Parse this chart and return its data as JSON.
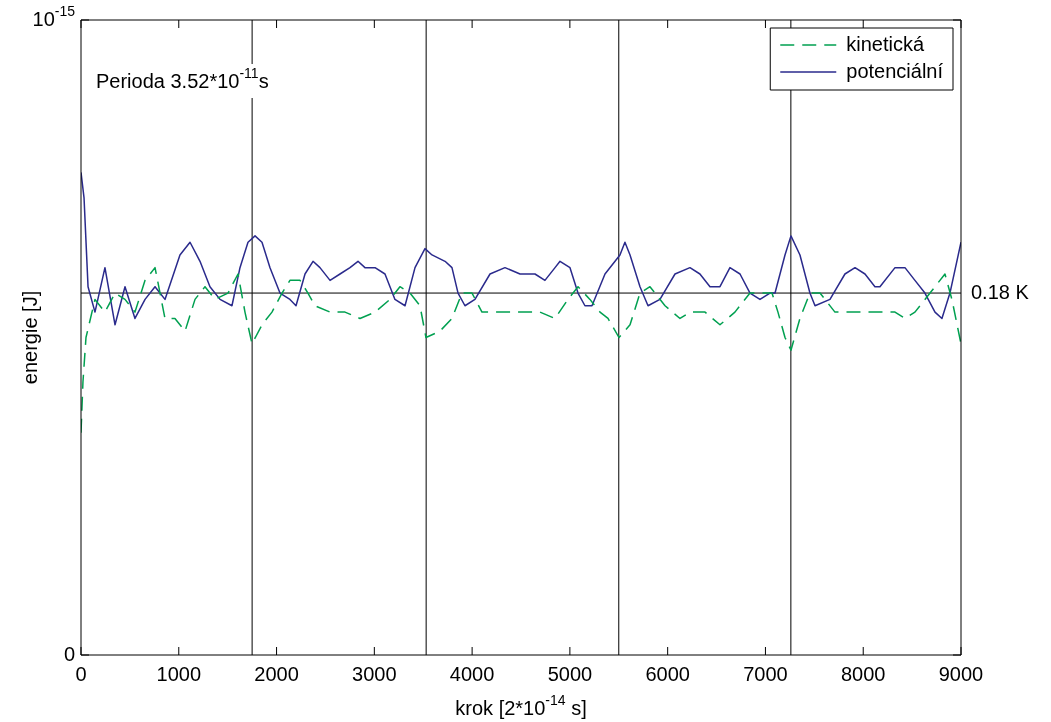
{
  "chart_data": {
    "type": "line",
    "xlabel": "krok [2*10$^{-14}$ s]",
    "ylabel": "energie [J]",
    "annotations": [
      "Perioda 3.52*10$^{-11}$s"
    ],
    "xlim": [
      0,
      9000
    ],
    "xticks": [
      0,
      1000,
      2000,
      3000,
      4000,
      5000,
      6000,
      7000,
      8000,
      9000
    ],
    "ylim": [
      0,
      1e-15
    ],
    "yticks": [
      {
        "value": 0,
        "label": "0"
      },
      {
        "value": 1e-15,
        "label": "10$^{-15}$"
      }
    ],
    "grid": false,
    "legend": "top right",
    "ref_lines": [
      {
        "axis": "y",
        "value": 5.7e-16,
        "label": "0.18 K",
        "color": "#000000"
      },
      {
        "axis": "x",
        "value": 1750,
        "color": "#000000"
      },
      {
        "axis": "x",
        "value": 3530,
        "color": "#000000"
      },
      {
        "axis": "x",
        "value": 5500,
        "color": "#000000"
      },
      {
        "axis": "x",
        "value": 7260,
        "color": "#000000"
      }
    ],
    "series": [
      {
        "name": "kinetická",
        "color": "#00a050",
        "line_style": "dashed",
        "x": [
          0,
          20,
          51,
          143,
          245,
          348,
          450,
          552,
          655,
          757,
          859,
          961,
          1064,
          1166,
          1268,
          1370,
          1503,
          1606,
          1677,
          1749,
          1851,
          1953,
          2056,
          2137,
          2240,
          2321,
          2393,
          2547,
          2700,
          2853,
          3007,
          3160,
          3262,
          3365,
          3467,
          3528,
          3671,
          3794,
          3896,
          3999,
          4101,
          4234,
          4387,
          4541,
          4694,
          4848,
          4980,
          5083,
          5205,
          5308,
          5390,
          5502,
          5615,
          5717,
          5819,
          5973,
          6126,
          6228,
          6382,
          6535,
          6688,
          6842,
          6995,
          7067,
          7128,
          7200,
          7261,
          7353,
          7455,
          7558,
          7711,
          7865,
          8018,
          8171,
          8325,
          8427,
          8529,
          8683,
          8836,
          8907,
          9000
        ],
        "values": [
          3.5e-16,
          4.3e-16,
          5e-16,
          5.6e-16,
          5.4e-16,
          5.7e-16,
          5.6e-16,
          5.4e-16,
          5.9e-16,
          6.1e-16,
          5.3e-16,
          5.3e-16,
          5.1e-16,
          5.6e-16,
          5.8e-16,
          5.6e-16,
          5.7e-16,
          6e-16,
          5.4e-16,
          4.9e-16,
          5.2e-16,
          5.4e-16,
          5.7e-16,
          5.9e-16,
          5.9e-16,
          5.7e-16,
          5.5e-16,
          5.4e-16,
          5.4e-16,
          5.3e-16,
          5.4e-16,
          5.6e-16,
          5.8e-16,
          5.7e-16,
          5.5e-16,
          5e-16,
          5.1e-16,
          5.3e-16,
          5.7e-16,
          5.7e-16,
          5.4e-16,
          5.4e-16,
          5.4e-16,
          5.4e-16,
          5.4e-16,
          5.3e-16,
          5.6e-16,
          5.8e-16,
          5.6e-16,
          5.4e-16,
          5.3e-16,
          5e-16,
          5.2e-16,
          5.7e-16,
          5.8e-16,
          5.5e-16,
          5.3e-16,
          5.4e-16,
          5.4e-16,
          5.2e-16,
          5.4e-16,
          5.7e-16,
          5.7e-16,
          5.7e-16,
          5.4e-16,
          5e-16,
          4.8e-16,
          5.3e-16,
          5.7e-16,
          5.7e-16,
          5.4e-16,
          5.4e-16,
          5.4e-16,
          5.4e-16,
          5.4e-16,
          5.3e-16,
          5.4e-16,
          5.7e-16,
          6e-16,
          5.6e-16,
          4.9e-16
        ]
      },
      {
        "name": "potenciální",
        "color": "#2a2a8c",
        "line_style": "solid",
        "x": [
          0,
          31,
          72,
          143,
          245,
          348,
          450,
          552,
          655,
          757,
          859,
          1012,
          1115,
          1217,
          1319,
          1422,
          1544,
          1626,
          1708,
          1780,
          1851,
          1933,
          2035,
          2137,
          2199,
          2291,
          2373,
          2444,
          2547,
          2649,
          2751,
          2833,
          2904,
          3007,
          3109,
          3211,
          3314,
          3416,
          3518,
          3590,
          3723,
          3794,
          3856,
          3927,
          4029,
          4183,
          4336,
          4490,
          4643,
          4745,
          4848,
          4899,
          5001,
          5083,
          5154,
          5226,
          5359,
          5512,
          5563,
          5615,
          5717,
          5799,
          5921,
          6075,
          6228,
          6330,
          6433,
          6535,
          6637,
          6740,
          6842,
          6944,
          7046,
          7098,
          7200,
          7261,
          7353,
          7455,
          7507,
          7660,
          7813,
          7916,
          8018,
          8120,
          8171,
          8325,
          8427,
          8529,
          8631,
          8734,
          8805,
          8887,
          9000
        ],
        "values": [
          7.6e-16,
          7.2e-16,
          5.8e-16,
          5.4e-16,
          6.1e-16,
          5.2e-16,
          5.8e-16,
          5.3e-16,
          5.6e-16,
          5.8e-16,
          5.6e-16,
          6.3e-16,
          6.5e-16,
          6.2e-16,
          5.8e-16,
          5.6e-16,
          5.5e-16,
          6.1e-16,
          6.5e-16,
          6.6e-16,
          6.5e-16,
          6.1e-16,
          5.7e-16,
          5.6e-16,
          5.5e-16,
          6e-16,
          6.2e-16,
          6.1e-16,
          5.9e-16,
          6e-16,
          6.1e-16,
          6.2e-16,
          6.1e-16,
          6.1e-16,
          6e-16,
          5.6e-16,
          5.5e-16,
          6.1e-16,
          6.4e-16,
          6.3e-16,
          6.2e-16,
          6.1e-16,
          5.7e-16,
          5.5e-16,
          5.6e-16,
          6e-16,
          6.1e-16,
          6e-16,
          6e-16,
          5.9e-16,
          6.1e-16,
          6.2e-16,
          6.1e-16,
          5.7e-16,
          5.5e-16,
          5.5e-16,
          6e-16,
          6.3e-16,
          6.5e-16,
          6.3e-16,
          5.8e-16,
          5.5e-16,
          5.6e-16,
          6e-16,
          6.1e-16,
          6e-16,
          5.8e-16,
          5.8e-16,
          6.1e-16,
          6e-16,
          5.7e-16,
          5.6e-16,
          5.7e-16,
          5.7e-16,
          6.3e-16,
          6.6e-16,
          6.3e-16,
          5.7e-16,
          5.5e-16,
          5.6e-16,
          6e-16,
          6.1e-16,
          6e-16,
          5.8e-16,
          5.8e-16,
          6.1e-16,
          6.1e-16,
          5.9e-16,
          5.7e-16,
          5.4e-16,
          5.3e-16,
          5.7e-16,
          6.5e-16
        ]
      }
    ]
  }
}
